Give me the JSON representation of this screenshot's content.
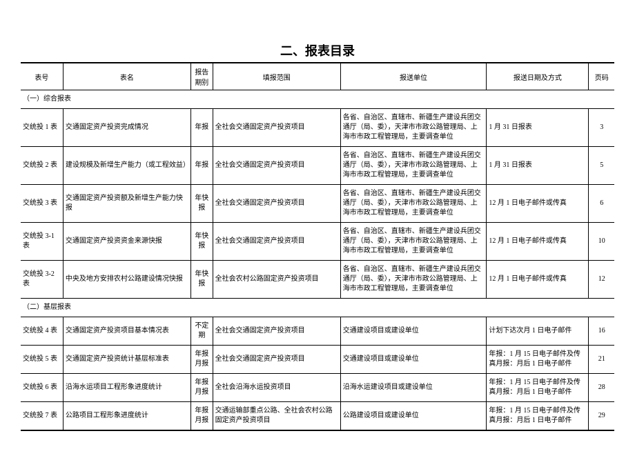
{
  "title": "二、报表目录",
  "columns": {
    "num": "表号",
    "name": "表名",
    "period": "报告期别",
    "scope": "填报范围",
    "unit": "报送单位",
    "date": "报送日期及方式",
    "page": "页码"
  },
  "sections": [
    {
      "label": "（一）综合报表"
    },
    {
      "label": "（二）基层报表"
    }
  ],
  "rows1": [
    {
      "num": "交统投 1 表",
      "name": "交通固定资产投资完成情况",
      "period": "年报",
      "scope": "全社会交通固定资产投资项目",
      "unit": "各省、自治区、直辖市、新疆生产建设兵团交通厅（局、委），天津市市政公路管理局、上海市市政工程管理局，主要调查单位",
      "date": "1 月 31 日报表",
      "page": 3
    },
    {
      "num": "交统投 2 表",
      "name": "建设规模及新增生产能力（或工程效益）",
      "period": "年报",
      "scope": "全社会交通固定资产投资项目",
      "unit": "各省、自治区、直辖市、新疆生产建设兵团交通厅（局、委），天津市市政公路管理局、上海市市政工程管理局，主要调查单位",
      "date": "1 月 31 日报表",
      "page": 5
    },
    {
      "num": "交统投 3 表",
      "name": "交通固定资产投资额及新增生产能力快报",
      "period": "年快报",
      "scope": "全社会交通固定资产投资项目",
      "unit": "各省、自治区、直辖市、新疆生产建设兵团交通厅（局、委），天津市市政公路管理局、上海市市政工程管理局，主要调查单位",
      "date": "12 月 1 日电子邮件或传真",
      "page": 6
    },
    {
      "num": "交统投 3-1 表",
      "name": "交通固定资产投资资金来源快报",
      "period": "年快报",
      "scope": "全社会交通固定资产投资项目",
      "unit": "各省、自治区、直辖市、新疆生产建设兵团交通厅（局、委），天津市市政公路管理局、上海市市政工程管理局，主要调查单位",
      "date": "12 月 1 日电子邮件或传真",
      "page": 10
    },
    {
      "num": "交统投 3-2 表",
      "name": "中央及地方安排农村公路建设情况快报",
      "period": "年快报",
      "scope": "全社会农村公路固定资产投资项目",
      "unit": "各省、自治区、直辖市、新疆生产建设兵团交通厅（局、委），天津市市政公路管理局、上海市市政工程管理局，主要调查单位",
      "date": "12 月 1 日电子邮件或传真",
      "page": 12
    }
  ],
  "rows2": [
    {
      "num": "交统投 4 表",
      "name": "交通固定资产投资项目基本情况表",
      "period": "不定期",
      "scope": "全社会交通固定资产投资项目",
      "unit": "交通建设项目或建设单位",
      "date": "计划下达次月 1 日电子邮件",
      "page": 16
    },
    {
      "num": "交统投 5 表",
      "name": "交通固定资产投资统计基层标准表",
      "period": "年报月报",
      "scope": "全社会交通固定资产投资项目",
      "unit": "交通建设项目或建设单位",
      "date": "年报：1 月 15 日电子邮件及传真月报：月后 1 日电子邮件",
      "page": 21
    },
    {
      "num": "交统投 6 表",
      "name": "沿海水运项目工程形象进度统计",
      "period": "年报月报",
      "scope": "全社会沿海水运投资项目",
      "unit": "沿海水运建设项目或建设单位",
      "date": "年报：1 月 15 日电子邮件及传真月报：月后 1 日电子邮件",
      "page": 28
    },
    {
      "num": "交统投 7 表",
      "name": "公路项目工程形象进度统计",
      "period": "年报月报",
      "scope": "交通运输部重点公路、全社会农村公路固定资产投资项目",
      "unit": "公路建设项目或建设单位",
      "date": "年报：1 月 15 日电子邮件及传真月报：月后 1 日电子邮件",
      "page": 29
    }
  ]
}
